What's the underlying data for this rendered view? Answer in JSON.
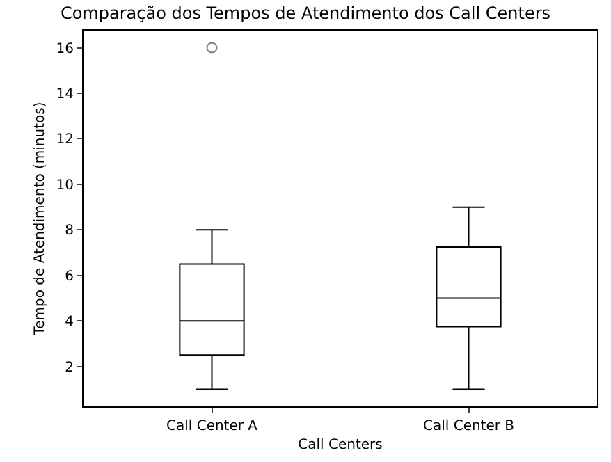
{
  "chart_data": {
    "type": "box",
    "title": "Comparação dos Tempos de Atendimento dos Call Centers",
    "xlabel": "Call Centers",
    "ylabel": "Tempo de Atendimento (minutos)",
    "categories": [
      "Call Center A",
      "Call Center B"
    ],
    "boxes": [
      {
        "low": 1,
        "q1": 2.5,
        "median": 4,
        "q3": 6.5,
        "high": 8,
        "outliers": [
          16
        ]
      },
      {
        "low": 1,
        "q1": 3.75,
        "median": 5,
        "q3": 7.25,
        "high": 9
      }
    ],
    "color": "#000000",
    "ylim": [
      0.25,
      16.75
    ],
    "yticks": [
      2,
      4,
      6,
      8,
      10,
      12,
      14,
      16
    ]
  }
}
